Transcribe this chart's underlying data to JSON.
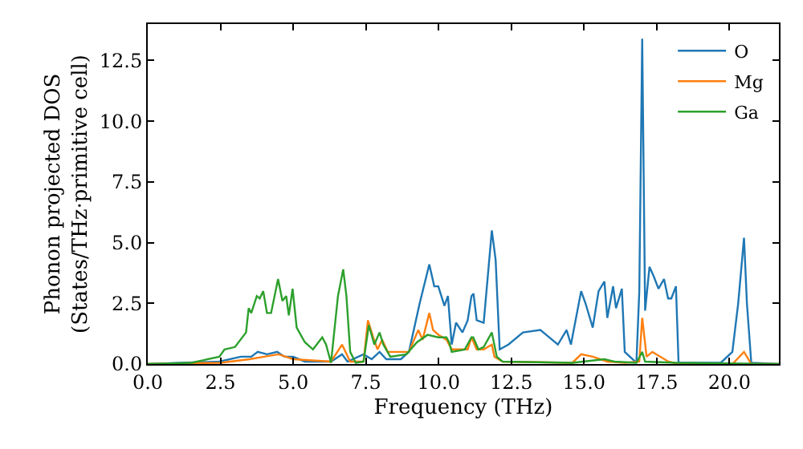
{
  "chart_data": {
    "type": "line",
    "xlabel": "Frequency (THz)",
    "ylabel": "Phonon projected DOS\n(States/THz·primitive cell)",
    "xlim": [
      0,
      21.7
    ],
    "ylim": [
      0,
      14.0
    ],
    "xticks": [
      {
        "value": 0,
        "label": "0.0"
      },
      {
        "value": 2.5,
        "label": "2.5"
      },
      {
        "value": 5,
        "label": "5.0"
      },
      {
        "value": 7.5,
        "label": "7.5"
      },
      {
        "value": 10,
        "label": "10.0"
      },
      {
        "value": 12.5,
        "label": "12.5"
      },
      {
        "value": 15,
        "label": "15.0"
      },
      {
        "value": 17.5,
        "label": "17.5"
      },
      {
        "value": 20,
        "label": "20.0"
      }
    ],
    "yticks": [
      {
        "value": 0,
        "label": "0.0"
      },
      {
        "value": 2.5,
        "label": "2.5"
      },
      {
        "value": 5,
        "label": "5.0"
      },
      {
        "value": 7.5,
        "label": "7.5"
      },
      {
        "value": 10,
        "label": "10.0"
      },
      {
        "value": 12.5,
        "label": "12.5"
      }
    ],
    "legend": "top right",
    "marker": "none",
    "line_style": "solid",
    "series": [
      {
        "name": "O",
        "color": "#1f77b4",
        "x": [
          0,
          2.46,
          3.2,
          3.56,
          3.78,
          4.1,
          4.45,
          4.7,
          5.0,
          5.4,
          6.3,
          6.68,
          6.87,
          7.42,
          7.7,
          7.97,
          8.2,
          8.7,
          8.98,
          9.35,
          9.68,
          9.85,
          9.99,
          10.2,
          10.32,
          10.45,
          10.6,
          10.82,
          11.0,
          11.13,
          11.2,
          11.31,
          11.55,
          11.83,
          11.96,
          12.1,
          12.4,
          12.9,
          13.5,
          13.7,
          14.1,
          14.4,
          14.55,
          14.9,
          15.05,
          15.3,
          15.5,
          15.7,
          15.8,
          16.0,
          16.1,
          16.3,
          16.4,
          16.8,
          16.9,
          17.0,
          17.1,
          17.25,
          17.4,
          17.56,
          17.75,
          17.89,
          18.0,
          18.16,
          18.25,
          19.7,
          20.1,
          20.3,
          20.5,
          20.6,
          20.75,
          21.7
        ],
        "values": [
          0,
          0.1,
          0.3,
          0.3,
          0.5,
          0.4,
          0.5,
          0.3,
          0.3,
          0.1,
          0.1,
          0.4,
          0.1,
          0.4,
          0.2,
          0.5,
          0.2,
          0.2,
          0.5,
          2.5,
          4.1,
          3.2,
          3.2,
          2.4,
          2.8,
          0.8,
          1.7,
          1.3,
          1.8,
          2.8,
          2.9,
          1.8,
          1.7,
          5.5,
          4.3,
          0.6,
          0.8,
          1.3,
          1.4,
          1.2,
          0.8,
          1.4,
          0.8,
          3.0,
          2.5,
          1.5,
          3.0,
          3.4,
          1.9,
          3.2,
          2.3,
          3.1,
          0.5,
          0.05,
          3.0,
          13.4,
          2.2,
          4.0,
          3.6,
          3.1,
          3.5,
          2.7,
          2.7,
          3.2,
          0.05,
          0.05,
          0.5,
          2.5,
          5.2,
          2.5,
          0.05,
          0
        ]
      },
      {
        "name": "Mg",
        "color": "#ff7f0e",
        "x": [
          0,
          2.5,
          3.5,
          4.0,
          4.5,
          5.0,
          6.3,
          6.68,
          6.96,
          7.42,
          7.57,
          7.75,
          7.9,
          8.06,
          8.25,
          8.98,
          9.3,
          9.45,
          9.68,
          9.81,
          10.0,
          10.27,
          10.45,
          11.0,
          11.13,
          11.31,
          11.55,
          11.83,
          11.92,
          12.2,
          14.6,
          14.9,
          15.3,
          15.8,
          16.4,
          16.9,
          17.0,
          17.15,
          17.35,
          17.9,
          18.25,
          20.1,
          20.5,
          20.75,
          21.7
        ],
        "values": [
          0,
          0.05,
          0.2,
          0.3,
          0.4,
          0.2,
          0.1,
          0.8,
          0.1,
          0.1,
          1.8,
          1.1,
          0.6,
          1.0,
          0.5,
          0.5,
          1.4,
          1.0,
          2.1,
          1.4,
          1.2,
          1.0,
          0.6,
          0.6,
          1.1,
          0.6,
          0.6,
          0.8,
          0.3,
          0.1,
          0.05,
          0.4,
          0.3,
          0.1,
          0.05,
          0.1,
          1.9,
          0.3,
          0.5,
          0.1,
          0,
          0,
          0.5,
          0,
          0
        ]
      },
      {
        "name": "Ga",
        "color": "#2ca02c",
        "x": [
          0,
          1.5,
          2.46,
          2.64,
          3.0,
          3.38,
          3.47,
          3.56,
          3.75,
          3.85,
          3.97,
          4.1,
          4.24,
          4.48,
          4.63,
          4.76,
          4.85,
          4.98,
          5.12,
          5.4,
          5.68,
          6.0,
          6.13,
          6.3,
          6.54,
          6.72,
          6.83,
          6.96,
          7.15,
          7.42,
          7.6,
          7.79,
          7.97,
          8.1,
          8.34,
          8.89,
          9.26,
          9.62,
          9.99,
          10.27,
          10.36,
          10.45,
          10.9,
          11.13,
          11.19,
          11.37,
          11.55,
          11.83,
          12.0,
          12.2,
          14.6,
          15.7,
          16.05,
          16.8,
          17.0,
          17.1,
          18.2,
          21.7
        ],
        "values": [
          0,
          0.05,
          0.3,
          0.6,
          0.7,
          1.3,
          2.3,
          2.1,
          2.8,
          2.7,
          3.0,
          2.1,
          2.1,
          3.5,
          2.6,
          2.8,
          2.0,
          3.1,
          1.5,
          0.9,
          0.6,
          1.1,
          0.8,
          0.05,
          2.8,
          3.9,
          2.8,
          0.5,
          0.05,
          0.1,
          1.6,
          0.8,
          1.3,
          0.8,
          0.3,
          0.4,
          0.9,
          1.2,
          1.1,
          1.1,
          0.9,
          0.5,
          0.6,
          1.1,
          1.1,
          0.6,
          0.7,
          1.3,
          0.3,
          0.1,
          0.05,
          0.2,
          0.1,
          0.05,
          0.5,
          0.1,
          0.05,
          0
        ]
      }
    ]
  }
}
